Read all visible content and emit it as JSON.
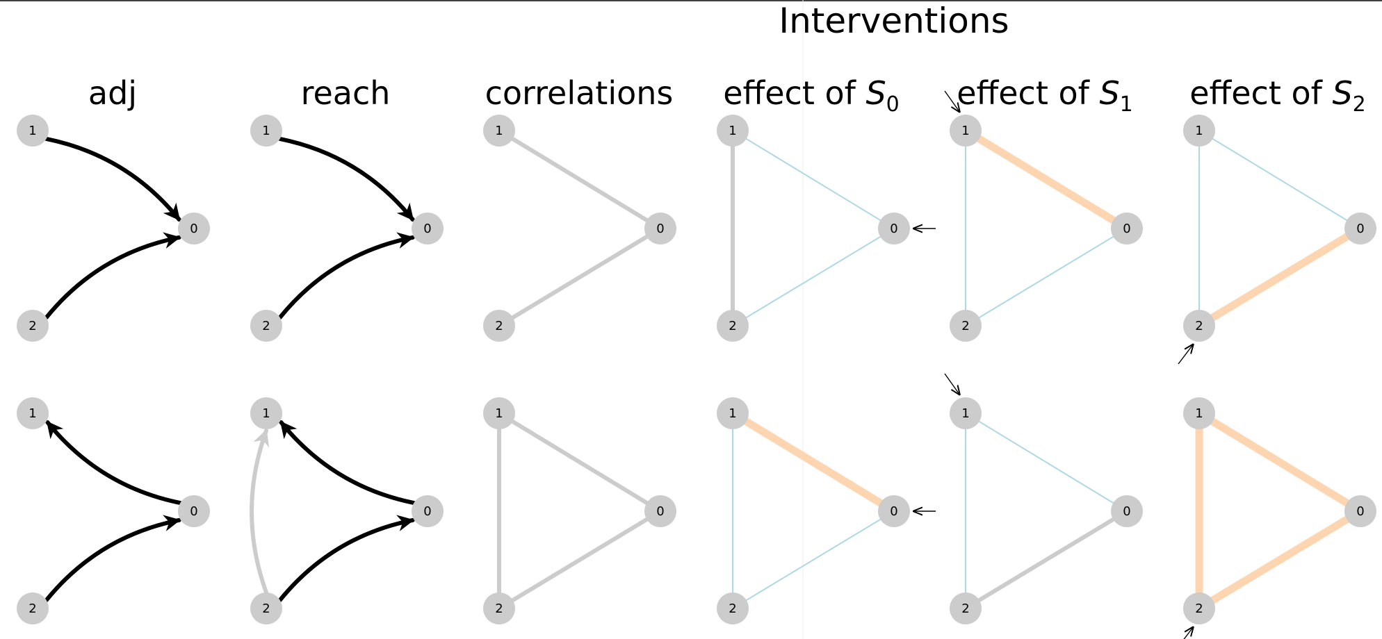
{
  "header": {
    "title": "Interventions"
  },
  "columns": [
    {
      "label": "adj"
    },
    {
      "label": "reach"
    },
    {
      "label": "correlations"
    },
    {
      "label": "effect of ",
      "var": "S",
      "sub": "0"
    },
    {
      "label": "effect of ",
      "var": "S",
      "sub": "1"
    },
    {
      "label": "effect of ",
      "var": "S",
      "sub": "2"
    }
  ],
  "node_labels": [
    "0",
    "1",
    "2"
  ],
  "colors": {
    "node_fill": "#cccccc",
    "edge_black": "#000000",
    "edge_gray": "#cccccc",
    "effect_blue": "#add8e6",
    "effect_orange": "#fdd5b1",
    "frame": "#000000"
  },
  "rows": [
    {
      "adj": [
        {
          "from": "1",
          "to": "0"
        },
        {
          "from": "2",
          "to": "0"
        }
      ],
      "reach": [
        {
          "from": "1",
          "to": "0",
          "color": "black"
        },
        {
          "from": "2",
          "to": "0",
          "color": "black"
        }
      ],
      "correlations": [
        [
          "1",
          "0"
        ],
        [
          "2",
          "0"
        ]
      ],
      "effects": [
        {
          "intervened": "0",
          "edges": [
            {
              "pair": [
                "1",
                "2"
              ],
              "color": "gray"
            },
            {
              "pair": [
                "1",
                "0"
              ],
              "color": "blue"
            },
            {
              "pair": [
                "2",
                "0"
              ],
              "color": "blue"
            }
          ]
        },
        {
          "intervened": "1",
          "edges": [
            {
              "pair": [
                "1",
                "0"
              ],
              "color": "orange"
            },
            {
              "pair": [
                "1",
                "2"
              ],
              "color": "blue"
            },
            {
              "pair": [
                "2",
                "0"
              ],
              "color": "blue"
            }
          ]
        },
        {
          "intervened": "2",
          "edges": [
            {
              "pair": [
                "2",
                "0"
              ],
              "color": "orange"
            },
            {
              "pair": [
                "1",
                "2"
              ],
              "color": "blue"
            },
            {
              "pair": [
                "1",
                "0"
              ],
              "color": "blue"
            }
          ]
        }
      ]
    },
    {
      "adj": [
        {
          "from": "0",
          "to": "1"
        },
        {
          "from": "2",
          "to": "0"
        }
      ],
      "reach": [
        {
          "from": "0",
          "to": "1",
          "color": "black"
        },
        {
          "from": "2",
          "to": "0",
          "color": "black"
        },
        {
          "from": "2",
          "to": "1",
          "color": "gray"
        }
      ],
      "correlations": [
        [
          "1",
          "0"
        ],
        [
          "2",
          "0"
        ],
        [
          "1",
          "2"
        ]
      ],
      "effects": [
        {
          "intervened": "0",
          "edges": [
            {
              "pair": [
                "1",
                "0"
              ],
              "color": "orange"
            },
            {
              "pair": [
                "1",
                "2"
              ],
              "color": "blue"
            },
            {
              "pair": [
                "2",
                "0"
              ],
              "color": "blue"
            }
          ]
        },
        {
          "intervened": "1",
          "edges": [
            {
              "pair": [
                "2",
                "0"
              ],
              "color": "gray"
            },
            {
              "pair": [
                "1",
                "2"
              ],
              "color": "blue"
            },
            {
              "pair": [
                "1",
                "0"
              ],
              "color": "blue"
            }
          ]
        },
        {
          "intervened": "2",
          "edges": [
            {
              "pair": [
                "1",
                "0"
              ],
              "color": "orange"
            },
            {
              "pair": [
                "1",
                "2"
              ],
              "color": "orange"
            },
            {
              "pair": [
                "2",
                "0"
              ],
              "color": "orange"
            }
          ]
        }
      ]
    }
  ]
}
